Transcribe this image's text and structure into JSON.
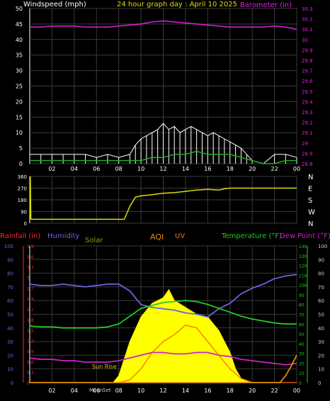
{
  "header": {
    "left": "Windspeed (mph)",
    "center": "24 hour graph day : April 10 2025",
    "right": "Barometer (in)"
  },
  "lower_header": {
    "rainfall": "Rainfall (in)",
    "humidity": "Humidity",
    "solar": "Solar",
    "aqi": "AQI",
    "uv": "UV",
    "temperature": "Temperature (°F)",
    "dewpoint": "Dew Point (°F)"
  },
  "annotations": {
    "sunrise": "Sun Rise",
    "moonset": "MoonSet"
  },
  "colors": {
    "windspeed_gust": "#ffffff",
    "windspeed_avg": "#22aa22",
    "windspeed_low": "#aaaaaa",
    "barometer": "#dd22dd",
    "wind_direction": "#dddd00",
    "rainfall": "#ff2222",
    "humidity": "#6666dd",
    "solar": "#ffff00",
    "aqi": "#e09000",
    "uv": "#ff6600",
    "temperature": "#22cc22",
    "dewpoint": "#cc22cc",
    "frame": "#ffffff"
  },
  "chart_data": [
    {
      "type": "line",
      "name": "wind",
      "x_ticks": [
        "02",
        "04",
        "06",
        "08",
        "10",
        "12",
        "14",
        "16",
        "18",
        "20",
        "22",
        "00"
      ],
      "y_left_ticks": [
        "0",
        "5",
        "10",
        "15",
        "20",
        "25",
        "30",
        "35",
        "40",
        "45",
        "50"
      ],
      "ylim_left": [
        0,
        50
      ],
      "y_right_ticks": [
        "28.8",
        "28.9",
        "29",
        "29.1",
        "29.2",
        "29.3",
        "29.4",
        "29.5",
        "29.6",
        "29.7",
        "29.8",
        "29.9",
        "30",
        "30.1",
        "30.2",
        "30.3"
      ],
      "ylim_right": [
        28.8,
        30.3
      ],
      "xlim_hours": [
        0,
        24
      ],
      "grid": true,
      "series": [
        {
          "key": "barometer",
          "axis": "right",
          "x": [
            0,
            1,
            2,
            3,
            4,
            5,
            6,
            7,
            8,
            9,
            10,
            11,
            12,
            13,
            14,
            15,
            16,
            17,
            18,
            19,
            20,
            21,
            22,
            23,
            24
          ],
          "y": [
            30.12,
            30.12,
            30.13,
            30.13,
            30.13,
            30.12,
            30.12,
            30.12,
            30.13,
            30.14,
            30.15,
            30.17,
            30.18,
            30.17,
            30.16,
            30.15,
            30.14,
            30.13,
            30.12,
            30.12,
            30.12,
            30.12,
            30.13,
            30.12,
            30.1
          ]
        },
        {
          "key": "windspeed_gust",
          "axis": "left",
          "x": [
            0,
            1,
            2,
            3,
            4,
            5,
            6,
            7,
            8,
            9,
            9.5,
            10,
            10.5,
            11,
            11.5,
            12,
            12.5,
            13,
            13.5,
            14,
            14.5,
            15,
            15.5,
            16,
            16.5,
            17,
            17.5,
            18,
            18.5,
            19,
            19.5,
            20,
            21,
            22,
            23,
            24
          ],
          "y": [
            3,
            3,
            3,
            3,
            3,
            3,
            2,
            3,
            2,
            3,
            6,
            8,
            9,
            10,
            11,
            13,
            11,
            12,
            10,
            11,
            12,
            11,
            10,
            9,
            10,
            9,
            8,
            7,
            6,
            5,
            3,
            1,
            0,
            3,
            3,
            2
          ]
        },
        {
          "key": "windspeed_avg",
          "axis": "left",
          "x": [
            0,
            1,
            2,
            3,
            4,
            5,
            6,
            7,
            8,
            9,
            10,
            11,
            12,
            13,
            14,
            15,
            16,
            17,
            18,
            19,
            20,
            21,
            22,
            23,
            24
          ],
          "y": [
            1,
            1,
            1,
            1,
            1,
            1,
            1,
            1,
            1,
            1,
            1,
            2,
            2,
            3,
            3,
            4,
            3,
            3,
            3,
            2,
            1,
            0,
            0,
            1,
            1
          ]
        }
      ]
    },
    {
      "type": "scatter",
      "name": "wind_direction",
      "y_left_ticks": [
        "0",
        "90",
        "180",
        "270",
        "360"
      ],
      "ylim": [
        0,
        360
      ],
      "y_right_ticks": [
        "N",
        "W",
        "S",
        "E",
        "N"
      ],
      "xlim_hours": [
        0,
        24
      ],
      "x": [
        0,
        0.05,
        0.1,
        1,
        2,
        3,
        4,
        5,
        6,
        7,
        8,
        8.5,
        9,
        9.5,
        10,
        11,
        12,
        13,
        14,
        15,
        16,
        17,
        17.5,
        18,
        19,
        20,
        21,
        22,
        23,
        24
      ],
      "y": [
        30,
        360,
        30,
        30,
        30,
        30,
        30,
        30,
        30,
        30,
        30,
        30,
        130,
        200,
        210,
        220,
        230,
        235,
        245,
        255,
        260,
        255,
        265,
        270,
        270,
        270,
        270,
        270,
        270,
        270
      ]
    },
    {
      "type": "line",
      "name": "weather",
      "x_ticks": [
        "02",
        "04",
        "06",
        "08",
        "10",
        "12",
        "14",
        "16",
        "18",
        "20",
        "22",
        "00"
      ],
      "humidity_ticks": [
        "0",
        "10",
        "20",
        "30",
        "40",
        "50",
        "60",
        "70",
        "80",
        "90",
        "100"
      ],
      "rain_ticks": [
        "0",
        "0.3",
        "0.6",
        "0.9",
        "1.2",
        "1.5",
        "1.8",
        "2.1",
        "2.4",
        "2.7",
        "3",
        "3.3",
        "3.6",
        "3.9"
      ],
      "temp_ticks": [
        "0",
        "10",
        "20",
        "30",
        "40",
        "50",
        "60",
        "70",
        "80",
        "90",
        "100",
        "110",
        "120",
        "130",
        "140"
      ],
      "dew_ticks": [
        "0",
        "10",
        "20",
        "30",
        "40",
        "50",
        "60",
        "70",
        "80",
        "90",
        "100"
      ],
      "ylim_humidity": [
        0,
        100
      ],
      "ylim_temp": [
        0,
        140
      ],
      "ylim_rain": [
        0,
        3.9
      ],
      "xlim_hours": [
        0,
        24
      ],
      "series": [
        {
          "key": "humidity",
          "x": [
            0,
            1,
            2,
            3,
            4,
            5,
            6,
            7,
            8,
            9,
            10,
            11,
            12,
            13,
            14,
            15,
            16,
            17,
            18,
            19,
            20,
            21,
            22,
            23,
            24
          ],
          "y": [
            72,
            71,
            71,
            72,
            71,
            70,
            71,
            72,
            72,
            67,
            57,
            55,
            54,
            53,
            51,
            50,
            48,
            54,
            58,
            65,
            69,
            72,
            76,
            78,
            79
          ]
        },
        {
          "key": "temperature",
          "x": [
            0,
            1,
            2,
            3,
            4,
            5,
            6,
            7,
            8,
            9,
            10,
            11,
            12,
            13,
            14,
            15,
            16,
            17,
            18,
            19,
            20,
            21,
            22,
            23,
            24
          ],
          "y": [
            58,
            57,
            57,
            56,
            56,
            56,
            56,
            57,
            60,
            68,
            76,
            79,
            82,
            83,
            84,
            83,
            80,
            76,
            72,
            68,
            65,
            63,
            61,
            60,
            60
          ]
        },
        {
          "key": "dewpoint",
          "x": [
            0,
            1,
            2,
            3,
            4,
            5,
            6,
            7,
            8,
            9,
            10,
            11,
            12,
            13,
            14,
            15,
            16,
            17,
            18,
            19,
            20,
            21,
            22,
            23,
            24
          ],
          "y": [
            18,
            17,
            17,
            16,
            16,
            15,
            15,
            15,
            16,
            18,
            20,
            22,
            22,
            21,
            21,
            22,
            22,
            20,
            19,
            17,
            16,
            15,
            14,
            13,
            14
          ]
        },
        {
          "key": "solar",
          "x": [
            0,
            7.5,
            8,
            9,
            10,
            11,
            12,
            12.5,
            13,
            14,
            15,
            16,
            17,
            18,
            18.5,
            19,
            20,
            24
          ],
          "y": [
            0,
            0,
            5,
            30,
            48,
            58,
            62,
            68,
            60,
            55,
            50,
            48,
            38,
            22,
            10,
            3,
            0,
            0
          ]
        },
        {
          "key": "uv",
          "x": [
            0,
            8,
            9,
            10,
            11,
            12,
            13,
            14,
            15,
            16,
            17,
            18,
            19,
            20,
            24
          ],
          "y": [
            0,
            0,
            2,
            10,
            22,
            30,
            35,
            42,
            40,
            30,
            20,
            10,
            3,
            0,
            0
          ]
        },
        {
          "key": "aqi",
          "x": [
            0,
            22.5,
            23,
            23.5,
            24
          ],
          "y": [
            0,
            0,
            5,
            12,
            20
          ]
        }
      ]
    }
  ]
}
